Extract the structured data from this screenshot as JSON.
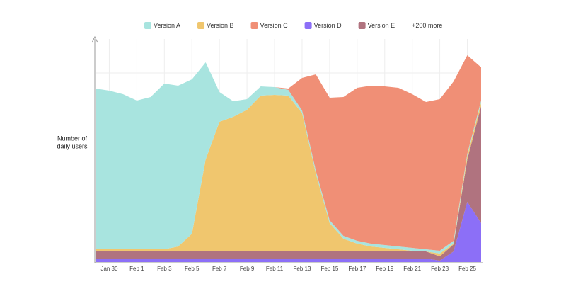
{
  "chart_data": {
    "type": "stacked-area",
    "y_label": [
      "Number of",
      "daily users"
    ],
    "legend_more": "+200 more",
    "categories": [
      null,
      "Jan 30",
      null,
      "Feb 1",
      null,
      "Feb 3",
      null,
      "Feb 5",
      null,
      "Feb 7",
      null,
      "Feb 9",
      null,
      "Feb 11",
      null,
      "Feb 13",
      null,
      "Feb 15",
      null,
      "Feb 17",
      null,
      "Feb 19",
      null,
      "Feb 21",
      null,
      "Feb 23",
      null,
      "Feb 25",
      null
    ],
    "ylim": [
      0,
      315
    ],
    "series": [
      {
        "name": "Version A",
        "color": "#a8e4df",
        "values": [
          227,
          224,
          219,
          210,
          215,
          234,
          227,
          218,
          137,
          42,
          22,
          15,
          13,
          11,
          8,
          4,
          4,
          4,
          4,
          4,
          4,
          4,
          4,
          4,
          3,
          4,
          4,
          3,
          3
        ]
      },
      {
        "name": "Version B",
        "color": "#f0c66e",
        "values": [
          3,
          3,
          3,
          3,
          3,
          3,
          7,
          25,
          130,
          183,
          190,
          200,
          220,
          221,
          220,
          195,
          110,
          40,
          18,
          11,
          7,
          5,
          3,
          1,
          0,
          4,
          1,
          5,
          5
        ]
      },
      {
        "name": "Version C",
        "color": "#f08f76",
        "values": [
          0,
          0,
          0,
          0,
          0,
          0,
          0,
          0,
          0,
          0,
          0,
          0,
          0,
          0,
          2,
          46,
          136,
          173,
          196,
          216,
          223,
          224,
          224,
          217,
          208,
          214,
          225,
          139,
          47
        ]
      },
      {
        "name": "Version D",
        "color": "#8c6ff7",
        "values": [
          5,
          5,
          5,
          5,
          5,
          5,
          5,
          5,
          5,
          5,
          5,
          5,
          5,
          5,
          5,
          5,
          5,
          5,
          5,
          5,
          5,
          5,
          5,
          5,
          5,
          2,
          15,
          85,
          55
        ]
      },
      {
        "name": "Version E",
        "color": "#b0737f",
        "values": [
          10,
          10,
          10,
          10,
          10,
          10,
          10,
          10,
          10,
          10,
          10,
          10,
          10,
          10,
          10,
          10,
          10,
          10,
          10,
          10,
          10,
          10,
          10,
          10,
          10,
          6,
          10,
          60,
          165
        ]
      }
    ]
  }
}
